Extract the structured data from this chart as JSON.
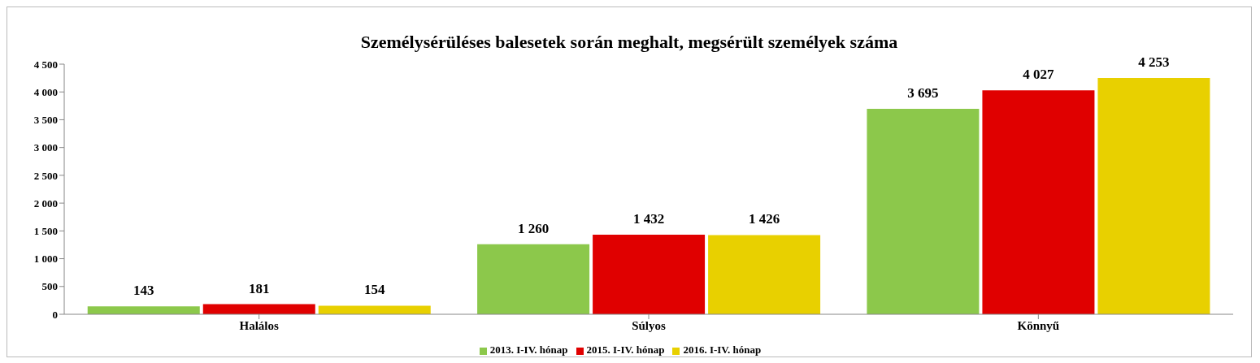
{
  "chart_data": {
    "type": "bar",
    "title": "Személysérüléses  balesetek során meghalt, megsérült személyek száma",
    "categories": [
      "Halálos",
      "Súlyos",
      "Könnyű"
    ],
    "series": [
      {
        "name": "2013. I-IV. hónap",
        "color": "#8cc84b",
        "values": [
          143,
          1260,
          3695
        ],
        "value_labels": [
          "143",
          "1 260",
          "3 695"
        ]
      },
      {
        "name": "2015. I-IV. hónap",
        "color": "#e00000",
        "values": [
          181,
          1432,
          4027
        ],
        "value_labels": [
          "181",
          "1 432",
          "4 027"
        ]
      },
      {
        "name": "2016. I-IV. hónap",
        "color": "#e8d000",
        "values": [
          154,
          1426,
          4253
        ],
        "value_labels": [
          "154",
          "1 426",
          "4 253"
        ]
      }
    ],
    "ylim": [
      0,
      4500
    ],
    "yticks": [
      0,
      500,
      {
        "value": 1000,
        "label": "1 000"
      },
      {
        "value": 1500,
        "label": "1 500"
      },
      {
        "value": 2000,
        "label": "2 000"
      },
      {
        "value": 2500,
        "label": "2 500"
      },
      {
        "value": 3000,
        "label": "3 000"
      },
      {
        "value": 3500,
        "label": "3 500"
      },
      {
        "value": 4000,
        "label": "4 000"
      },
      {
        "value": 4500,
        "label": "4 500"
      }
    ],
    "grid": false,
    "legend": "bottom"
  }
}
